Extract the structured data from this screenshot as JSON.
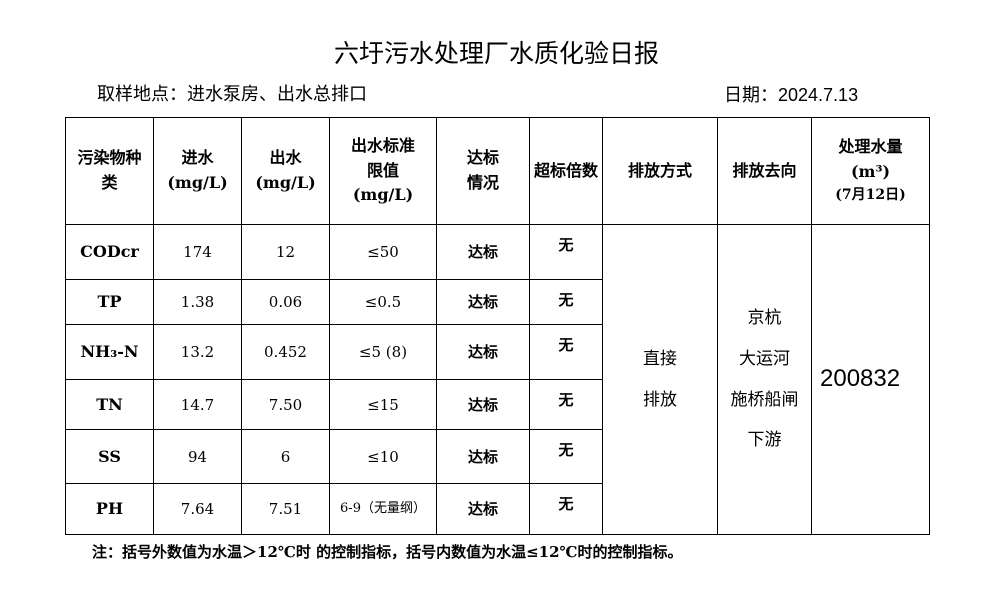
{
  "title": "六圩污水处理厂水质化验日报",
  "location": "取样地点：进水泵房、出水总排口",
  "date": "日期：2024.7.13",
  "headers": {
    "pollutant": "污染物种类",
    "inflow": "进水(mg/L)",
    "outflow": "出水(mg/L)",
    "limit": "出水标准限值(mg/L)",
    "status": "达标情况",
    "exceed": "超标倍数",
    "method": "排放方式",
    "destination": "排放去向",
    "volume": "处理水量(m³)",
    "volume_date": "(7月12日)"
  },
  "rows": [
    {
      "name": "CODcr",
      "in": "174",
      "out": "12",
      "limit": "≤50",
      "status": "达标",
      "exceed": "无"
    },
    {
      "name": "TP",
      "in": "1.38",
      "out": "0.06",
      "limit": "≤0.5",
      "status": "达标",
      "exceed": "无"
    },
    {
      "name": "NH₃-N",
      "in": "13.2",
      "out": "0.452",
      "limit": "≤5 (8)",
      "status": "达标",
      "exceed": "无"
    },
    {
      "name": "TN",
      "in": "14.7",
      "out": "7.50",
      "limit": "≤15",
      "status": "达标",
      "exceed": "无"
    },
    {
      "name": "SS",
      "in": "94",
      "out": "6",
      "limit": "≤10",
      "status": "达标",
      "exceed": "无"
    },
    {
      "name": "PH",
      "in": "7.64",
      "out": "7.51",
      "limit": "6-9（无量纲）",
      "status": "达标",
      "exceed": "无"
    }
  ],
  "method": [
    "直接",
    "排放"
  ],
  "destination": [
    "京杭",
    "大运河",
    "施桥船闸",
    "下游"
  ],
  "volume": "200832",
  "note": "注：括号外数值为水温＞12℃时 的控制指标，括号内数值为水温≤12℃时的控制指标。"
}
